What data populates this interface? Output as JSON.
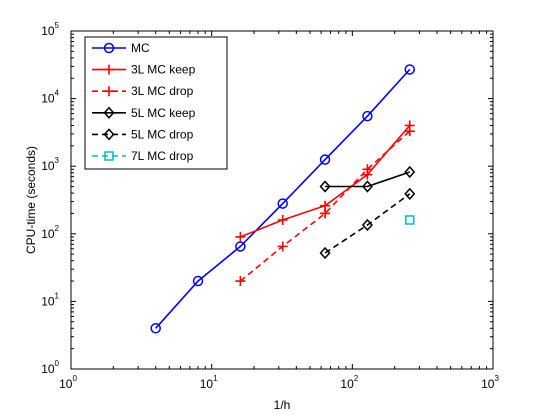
{
  "chart_data": {
    "type": "line",
    "xscale": "log",
    "yscale": "log",
    "xlabel": "1/h",
    "ylabel": "CPU-time (seconds)",
    "xlim": [
      1,
      1000
    ],
    "ylim": [
      1,
      100000
    ],
    "xticks": [
      1,
      10,
      100,
      1000
    ],
    "yticks": [
      1,
      10,
      100,
      1000,
      10000,
      100000
    ],
    "tick_base": "10",
    "xtick_exponents": [
      "0",
      "1",
      "2",
      "3"
    ],
    "ytick_exponents": [
      "0",
      "1",
      "2",
      "3",
      "4",
      "5"
    ],
    "grid": false,
    "legend_position": "top-left",
    "series": [
      {
        "name": "MC",
        "color": "#0000ff",
        "linestyle": "solid",
        "marker": "circle",
        "points": [
          [
            4,
            4
          ],
          [
            8,
            20
          ],
          [
            16,
            65
          ],
          [
            32,
            280
          ],
          [
            64,
            1250
          ],
          [
            128,
            5500
          ],
          [
            256,
            27000
          ]
        ]
      },
      {
        "name": "3L MC keep",
        "color": "#ff0000",
        "linestyle": "solid",
        "marker": "plus",
        "points": [
          [
            16,
            90
          ],
          [
            32,
            160
          ],
          [
            64,
            260
          ],
          [
            128,
            750
          ],
          [
            256,
            4000
          ]
        ]
      },
      {
        "name": "3L MC drop",
        "color": "#ff0000",
        "linestyle": "dashed",
        "marker": "plus",
        "points": [
          [
            16,
            20
          ],
          [
            32,
            65
          ],
          [
            64,
            200
          ],
          [
            128,
            900
          ],
          [
            256,
            3300
          ]
        ]
      },
      {
        "name": "5L MC keep",
        "color": "#000000",
        "linestyle": "solid",
        "marker": "diamond",
        "points": [
          [
            64,
            500
          ],
          [
            128,
            500
          ],
          [
            256,
            820
          ]
        ]
      },
      {
        "name": "5L MC drop",
        "color": "#000000",
        "linestyle": "dashed",
        "marker": "diamond",
        "points": [
          [
            64,
            52
          ],
          [
            128,
            135
          ],
          [
            256,
            390
          ]
        ]
      },
      {
        "name": "7L MC drop",
        "color": "#00bfbf",
        "linestyle": "dashed",
        "marker": "square",
        "points": [
          [
            256,
            160
          ]
        ]
      }
    ]
  }
}
